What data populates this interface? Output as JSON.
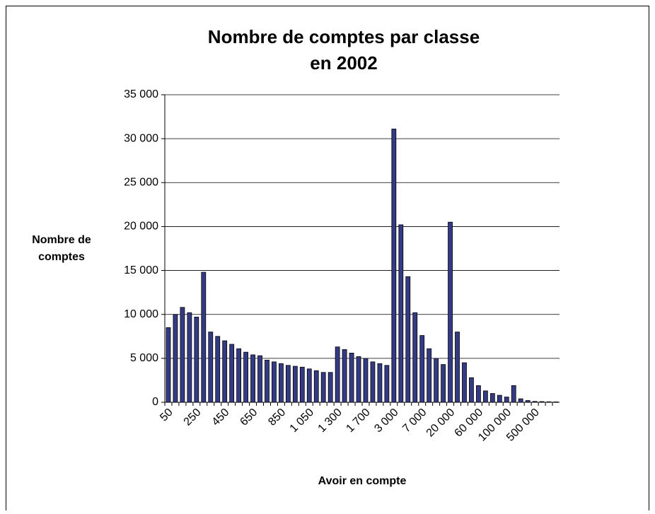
{
  "chart_data": {
    "type": "bar",
    "title": [
      "Nombre de comptes par classe",
      "en 2002"
    ],
    "y_label": [
      "Nombre de",
      "comptes"
    ],
    "x_label": "Avoir en compte",
    "categories": [
      "50",
      null,
      null,
      null,
      "250",
      null,
      null,
      null,
      "450",
      null,
      null,
      null,
      "650",
      null,
      null,
      null,
      "850",
      null,
      null,
      null,
      "1 050",
      null,
      null,
      null,
      "1 300",
      null,
      null,
      null,
      "1 700",
      null,
      null,
      null,
      "3 000",
      null,
      null,
      null,
      "7 000",
      null,
      null,
      null,
      "20 000",
      null,
      null,
      null,
      "60 000",
      null,
      null,
      null,
      "100 000",
      null,
      null,
      null,
      "500 000",
      null,
      null,
      null
    ],
    "values": [
      8500,
      10000,
      10800,
      10200,
      9700,
      14800,
      8000,
      7500,
      7000,
      6600,
      6100,
      5700,
      5400,
      5300,
      4800,
      4600,
      4400,
      4200,
      4100,
      4000,
      3800,
      3600,
      3400,
      3400,
      6300,
      6000,
      5600,
      5200,
      5000,
      4600,
      4400,
      4200,
      31100,
      20200,
      14300,
      10200,
      7600,
      6100,
      5000,
      4300,
      20500,
      8000,
      4500,
      2800,
      1900,
      1300,
      1000,
      800,
      600,
      1900,
      400,
      200,
      100,
      80,
      60,
      50
    ],
    "color": "#353a85",
    "ylim": [
      0,
      35000
    ],
    "yticks": [
      0,
      {
        "value": 5000,
        "label": "5 000"
      },
      {
        "value": 10000,
        "label": "10 000"
      },
      {
        "value": 15000,
        "label": "15 000"
      },
      {
        "value": 20000,
        "label": "20 000"
      },
      {
        "value": 25000,
        "label": "25 000"
      },
      {
        "value": 30000,
        "label": "30 000"
      },
      {
        "value": 35000,
        "label": "35 000"
      }
    ],
    "grid": true
  }
}
